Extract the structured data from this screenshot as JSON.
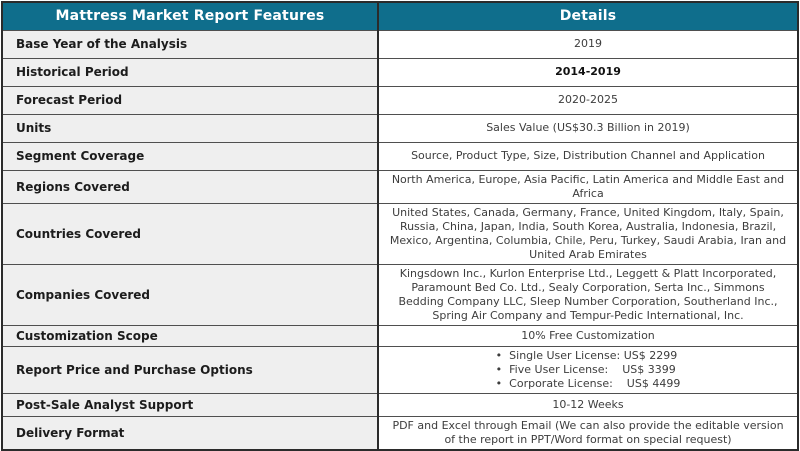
{
  "accent_color": "#0f6e8c",
  "table": {
    "headers": {
      "features": "Mattress Market Report Features",
      "details": "Details"
    },
    "rows": [
      {
        "label": "Base Year of the Analysis",
        "value": "2019"
      },
      {
        "label": "Historical Period",
        "value": "2014-2019"
      },
      {
        "label": "Forecast Period",
        "value": "2020-2025"
      },
      {
        "label": "Units",
        "value": "Sales Value (US$30.3 Billion in 2019)"
      },
      {
        "label": "Segment Coverage",
        "value": "Source, Product Type, Size, Distribution Channel and Application"
      },
      {
        "label": "Regions Covered",
        "value": "North America, Europe, Asia Pacific, Latin America and Middle East and Africa"
      },
      {
        "label": "Countries Covered",
        "value": "United States, Canada, Germany, France, United Kingdom, Italy, Spain, Russia, China, Japan, India, South Korea, Australia, Indonesia, Brazil, Mexico, Argentina, Columbia, Chile, Peru, Turkey, Saudi Arabia, Iran and United Arab Emirates"
      },
      {
        "label": "Companies Covered",
        "value": "Kingsdown Inc., Kurlon Enterprise Ltd., Leggett & Platt Incorporated, Paramount Bed Co. Ltd., Sealy Corporation, Serta Inc., Simmons Bedding Company LLC, Sleep Number Corporation, Southerland Inc., Spring Air Company and Tempur-Pedic International, Inc."
      },
      {
        "label": "Customization Scope",
        "value": "10% Free Customization"
      },
      {
        "label": "Report Price and Purchase Options",
        "options": [
          "Single User License: US$ 2299",
          "Five User License:    US$ 3399",
          "Corporate License:    US$ 4499"
        ]
      },
      {
        "label": "Post-Sale Analyst Support",
        "value": "10-12 Weeks"
      },
      {
        "label": "Delivery Format",
        "value": "PDF and Excel through Email (We can also provide the editable version of the report in PPT/Word format on special request)"
      }
    ]
  }
}
